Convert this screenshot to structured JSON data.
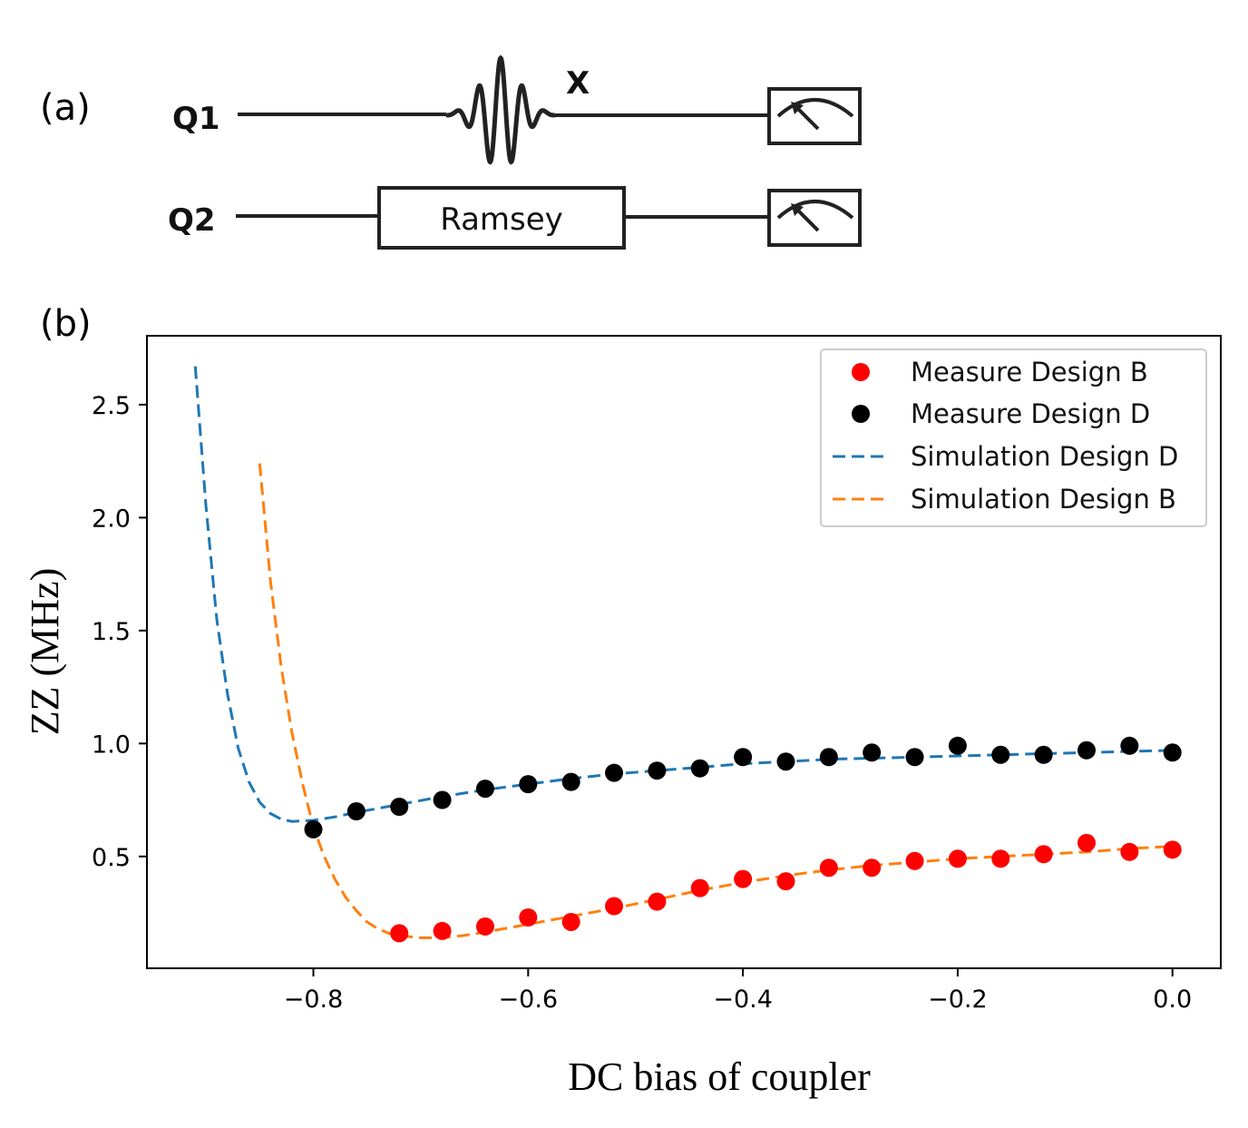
{
  "panels": {
    "a_label": "(a)",
    "b_label": "(b)"
  },
  "circuit": {
    "qubits": [
      "Q1",
      "Q2"
    ],
    "pulse_label": "X",
    "gate_label": "Ramsey",
    "measure_icon": "meter-icon"
  },
  "chart_data": {
    "type": "scatter",
    "title": "",
    "xlabel": "DC bias of coupler",
    "ylabel": "ZZ (MHz)",
    "xlim": [
      -0.955,
      0.045
    ],
    "ylim": [
      0.005,
      2.805
    ],
    "x_ticks": [
      -0.8,
      -0.6,
      -0.4,
      -0.2,
      0.0
    ],
    "x_tick_labels": [
      "−0.8",
      "−0.6",
      "−0.4",
      "−0.2",
      "0.0"
    ],
    "y_ticks": [
      0.5,
      1.0,
      1.5,
      2.0,
      2.5
    ],
    "y_tick_labels": [
      "0.5",
      "1.0",
      "1.5",
      "2.0",
      "2.5"
    ],
    "grid": false,
    "legend_position": "top-right",
    "series": [
      {
        "name": "Measure Design B",
        "kind": "points",
        "color": "#ff0000",
        "x": [
          -0.72,
          -0.68,
          -0.64,
          -0.6,
          -0.56,
          -0.52,
          -0.48,
          -0.44,
          -0.4,
          -0.36,
          -0.32,
          -0.28,
          -0.24,
          -0.2,
          -0.16,
          -0.12,
          -0.08,
          -0.04,
          0.0
        ],
        "y": [
          0.16,
          0.17,
          0.19,
          0.23,
          0.21,
          0.28,
          0.3,
          0.36,
          0.4,
          0.39,
          0.45,
          0.45,
          0.48,
          0.49,
          0.49,
          0.51,
          0.56,
          0.52,
          0.53
        ]
      },
      {
        "name": "Measure Design D",
        "kind": "points",
        "color": "#000000",
        "x": [
          -0.8,
          -0.76,
          -0.72,
          -0.68,
          -0.64,
          -0.6,
          -0.56,
          -0.52,
          -0.48,
          -0.44,
          -0.4,
          -0.36,
          -0.32,
          -0.28,
          -0.24,
          -0.2,
          -0.16,
          -0.12,
          -0.08,
          -0.04,
          0.0
        ],
        "y": [
          0.62,
          0.7,
          0.72,
          0.75,
          0.8,
          0.82,
          0.83,
          0.87,
          0.88,
          0.89,
          0.94,
          0.92,
          0.94,
          0.96,
          0.94,
          0.99,
          0.95,
          0.95,
          0.97,
          0.99,
          0.96
        ]
      },
      {
        "name": "Simulation Design D",
        "kind": "dashed-line",
        "color": "#1f77b4",
        "x": [
          -0.91,
          -0.9,
          -0.89,
          -0.88,
          -0.87,
          -0.86,
          -0.85,
          -0.84,
          -0.83,
          -0.82,
          -0.8,
          -0.78,
          -0.76,
          -0.72,
          -0.68,
          -0.64,
          -0.6,
          -0.56,
          -0.52,
          -0.48,
          -0.44,
          -0.4,
          -0.36,
          -0.32,
          -0.28,
          -0.24,
          -0.2,
          -0.16,
          -0.12,
          -0.08,
          -0.04,
          0.0
        ],
        "y": [
          2.67,
          2.05,
          1.55,
          1.22,
          0.98,
          0.83,
          0.74,
          0.69,
          0.665,
          0.655,
          0.66,
          0.675,
          0.695,
          0.73,
          0.765,
          0.795,
          0.82,
          0.845,
          0.865,
          0.88,
          0.895,
          0.91,
          0.92,
          0.93,
          0.935,
          0.94,
          0.945,
          0.95,
          0.955,
          0.96,
          0.965,
          0.97
        ]
      },
      {
        "name": "Simulation Design B",
        "kind": "dashed-line",
        "color": "#ff7f0e",
        "x": [
          -0.85,
          -0.84,
          -0.83,
          -0.82,
          -0.81,
          -0.8,
          -0.79,
          -0.78,
          -0.77,
          -0.76,
          -0.75,
          -0.74,
          -0.73,
          -0.72,
          -0.7,
          -0.68,
          -0.66,
          -0.64,
          -0.6,
          -0.56,
          -0.52,
          -0.48,
          -0.44,
          -0.4,
          -0.36,
          -0.32,
          -0.28,
          -0.24,
          -0.2,
          -0.16,
          -0.12,
          -0.08,
          -0.04,
          0.0
        ],
        "y": [
          2.24,
          1.72,
          1.34,
          1.05,
          0.82,
          0.63,
          0.5,
          0.4,
          0.32,
          0.26,
          0.21,
          0.18,
          0.16,
          0.15,
          0.14,
          0.14,
          0.15,
          0.165,
          0.2,
          0.235,
          0.27,
          0.31,
          0.35,
          0.385,
          0.415,
          0.44,
          0.46,
          0.475,
          0.49,
          0.5,
          0.51,
          0.52,
          0.535,
          0.545
        ]
      }
    ]
  }
}
